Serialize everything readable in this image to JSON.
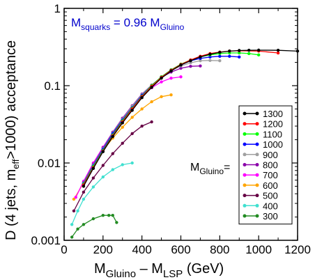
{
  "chart_data": {
    "type": "line",
    "title": "",
    "annotation": {
      "main": "M",
      "sub": "squarks",
      "rest": " = 0.96 M",
      "sub2": "Gluino"
    },
    "xlabel": {
      "p1": "M",
      "s1": "Gluino",
      "p2": " – M",
      "s2": "LSP",
      "p3": "  (GeV)"
    },
    "ylabel": {
      "p1": "D (4 jets, m",
      "s1": "eff",
      "p2": ">1000) acceptance"
    },
    "legend_title": {
      "main": "M",
      "sub": "Gluino",
      "suffix": "="
    },
    "xlim": [
      0,
      1200
    ],
    "ylim": [
      0.001,
      1
    ],
    "yscale": "log",
    "xticks": [
      "0",
      "200",
      "400",
      "600",
      "800",
      "1000",
      "1200"
    ],
    "yticks": [
      "0.001",
      "0.01",
      "0.1",
      "1"
    ],
    "legend_position": "right-center",
    "series": [
      {
        "name": "1300",
        "color": "#000000",
        "x": [
          100,
          150,
          200,
          250,
          300,
          350,
          400,
          450,
          500,
          550,
          600,
          650,
          700,
          750,
          800,
          850,
          900,
          950,
          1000,
          1100,
          1200
        ],
        "y": [
          0.005,
          0.0085,
          0.014,
          0.022,
          0.033,
          0.048,
          0.07,
          0.095,
          0.125,
          0.155,
          0.185,
          0.21,
          0.235,
          0.255,
          0.27,
          0.28,
          0.285,
          0.287,
          0.288,
          0.287,
          0.28
        ]
      },
      {
        "name": "1200",
        "color": "#ff0000",
        "x": [
          100,
          150,
          200,
          250,
          300,
          350,
          400,
          450,
          500,
          550,
          600,
          650,
          700,
          750,
          800,
          850,
          900,
          1000,
          1100
        ],
        "y": [
          0.0052,
          0.0087,
          0.0142,
          0.0225,
          0.034,
          0.05,
          0.072,
          0.098,
          0.128,
          0.158,
          0.188,
          0.215,
          0.24,
          0.26,
          0.272,
          0.28,
          0.283,
          0.28,
          0.265
        ]
      },
      {
        "name": "1100",
        "color": "#00ff00",
        "x": [
          100,
          150,
          200,
          250,
          300,
          350,
          400,
          450,
          500,
          550,
          600,
          650,
          700,
          750,
          800,
          850,
          900,
          950,
          1000
        ],
        "y": [
          0.0053,
          0.009,
          0.0145,
          0.023,
          0.035,
          0.051,
          0.073,
          0.1,
          0.13,
          0.16,
          0.19,
          0.215,
          0.235,
          0.25,
          0.26,
          0.265,
          0.265,
          0.26,
          0.25
        ]
      },
      {
        "name": "1000",
        "color": "#0000ff",
        "x": [
          100,
          150,
          200,
          250,
          300,
          350,
          400,
          450,
          500,
          550,
          600,
          650,
          700,
          750,
          800,
          850,
          900
        ],
        "y": [
          0.0054,
          0.0092,
          0.015,
          0.024,
          0.036,
          0.052,
          0.075,
          0.1,
          0.13,
          0.16,
          0.185,
          0.21,
          0.225,
          0.235,
          0.24,
          0.24,
          0.235
        ]
      },
      {
        "name": "900",
        "color": "#a0a0a0",
        "x": [
          100,
          150,
          200,
          250,
          300,
          350,
          400,
          450,
          500,
          550,
          600,
          650,
          700,
          750,
          800
        ],
        "y": [
          0.0055,
          0.0094,
          0.0153,
          0.0245,
          0.037,
          0.054,
          0.077,
          0.102,
          0.13,
          0.158,
          0.18,
          0.198,
          0.21,
          0.212,
          0.21
        ]
      },
      {
        "name": "800",
        "color": "#8b00aa",
        "x": [
          100,
          150,
          200,
          250,
          300,
          350,
          400,
          450,
          500,
          550,
          600,
          650,
          700
        ],
        "y": [
          0.0056,
          0.0096,
          0.0157,
          0.025,
          0.038,
          0.055,
          0.078,
          0.102,
          0.128,
          0.15,
          0.168,
          0.178,
          0.18
        ]
      },
      {
        "name": "700",
        "color": "#ff00ff",
        "x": [
          60,
          100,
          150,
          200,
          250,
          300,
          350,
          400,
          450,
          500,
          550,
          600
        ],
        "y": [
          0.0036,
          0.0058,
          0.01,
          0.016,
          0.025,
          0.037,
          0.053,
          0.073,
          0.094,
          0.112,
          0.125,
          0.13
        ]
      },
      {
        "name": "600",
        "color": "#ffa500",
        "x": [
          50,
          100,
          150,
          200,
          250,
          300,
          350,
          400,
          450,
          500,
          550
        ],
        "y": [
          0.0034,
          0.0055,
          0.0092,
          0.0145,
          0.021,
          0.029,
          0.039,
          0.05,
          0.062,
          0.072,
          0.076
        ]
      },
      {
        "name": "500",
        "color": "#660044",
        "x": [
          50,
          100,
          150,
          200,
          250,
          300,
          350,
          400,
          450
        ],
        "y": [
          0.0024,
          0.0042,
          0.0064,
          0.0093,
          0.0132,
          0.018,
          0.024,
          0.03,
          0.034
        ]
      },
      {
        "name": "400",
        "color": "#40e0d0",
        "x": [
          40,
          70,
          100,
          150,
          200,
          250,
          300,
          350
        ],
        "y": [
          0.0016,
          0.0024,
          0.0034,
          0.0049,
          0.0066,
          0.0082,
          0.0095,
          0.01
        ]
      },
      {
        "name": "300",
        "color": "#228b22",
        "x": [
          40,
          70,
          100,
          150,
          200,
          230,
          250,
          270
        ],
        "y": [
          0.0011,
          0.0014,
          0.0016,
          0.0019,
          0.0021,
          0.0021,
          0.0021,
          0.0017
        ]
      }
    ]
  }
}
